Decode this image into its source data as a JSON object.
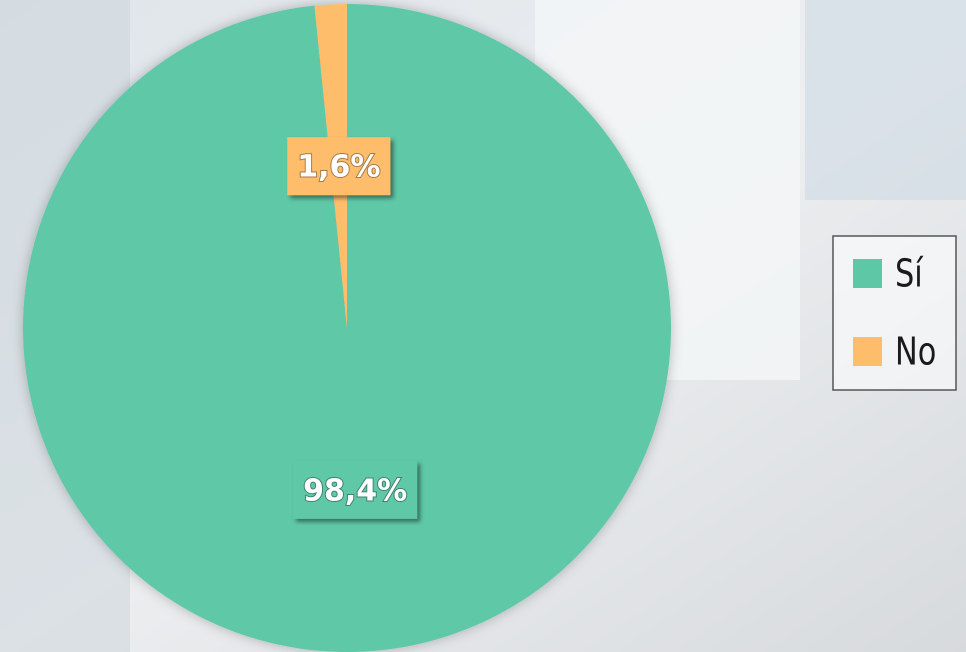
{
  "chart_data": {
    "type": "pie",
    "categories": [
      "Sí",
      "No"
    ],
    "values": [
      98.4,
      1.6
    ],
    "value_labels": [
      "98,4%",
      "1,6%"
    ],
    "colors": [
      "#5ec8a6",
      "#fdbd6b"
    ],
    "legend": "right"
  }
}
